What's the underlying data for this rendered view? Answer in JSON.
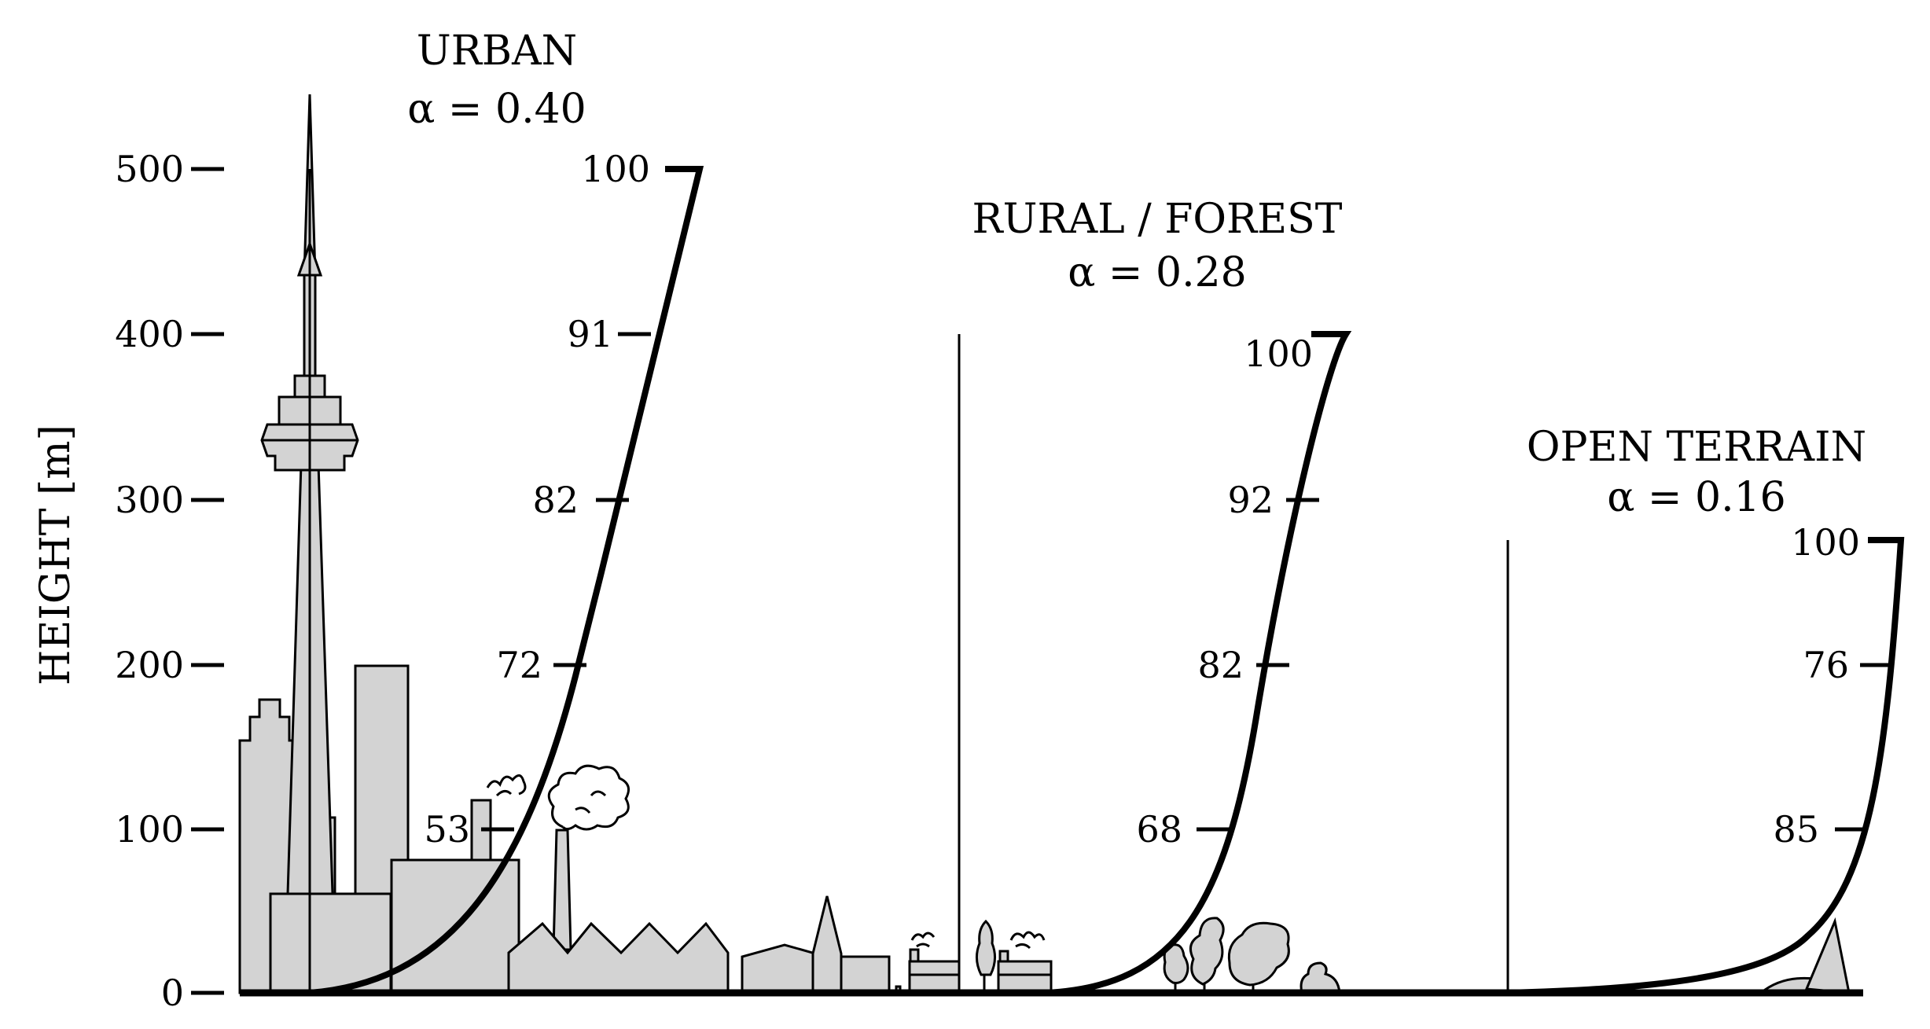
{
  "axis": {
    "ylabel": "HEIGHT [m]",
    "ticks": [
      "500",
      "400",
      "300",
      "200",
      "100",
      "0"
    ]
  },
  "profiles": [
    {
      "title": "URBAN",
      "alpha_label": "α = 0.40",
      "speed_labels": [
        "100",
        "91",
        "82",
        "72",
        "53"
      ]
    },
    {
      "title": "RURAL / FOREST",
      "alpha_label": "α = 0.28",
      "speed_labels": [
        "100",
        "92",
        "82",
        "68"
      ]
    },
    {
      "title": "OPEN TERRAIN",
      "alpha_label": "α = 0.16",
      "speed_labels": [
        "100",
        "76",
        "85"
      ]
    }
  ],
  "colors": {
    "building_fill": "#d3d3d3",
    "line": "#000000"
  }
}
